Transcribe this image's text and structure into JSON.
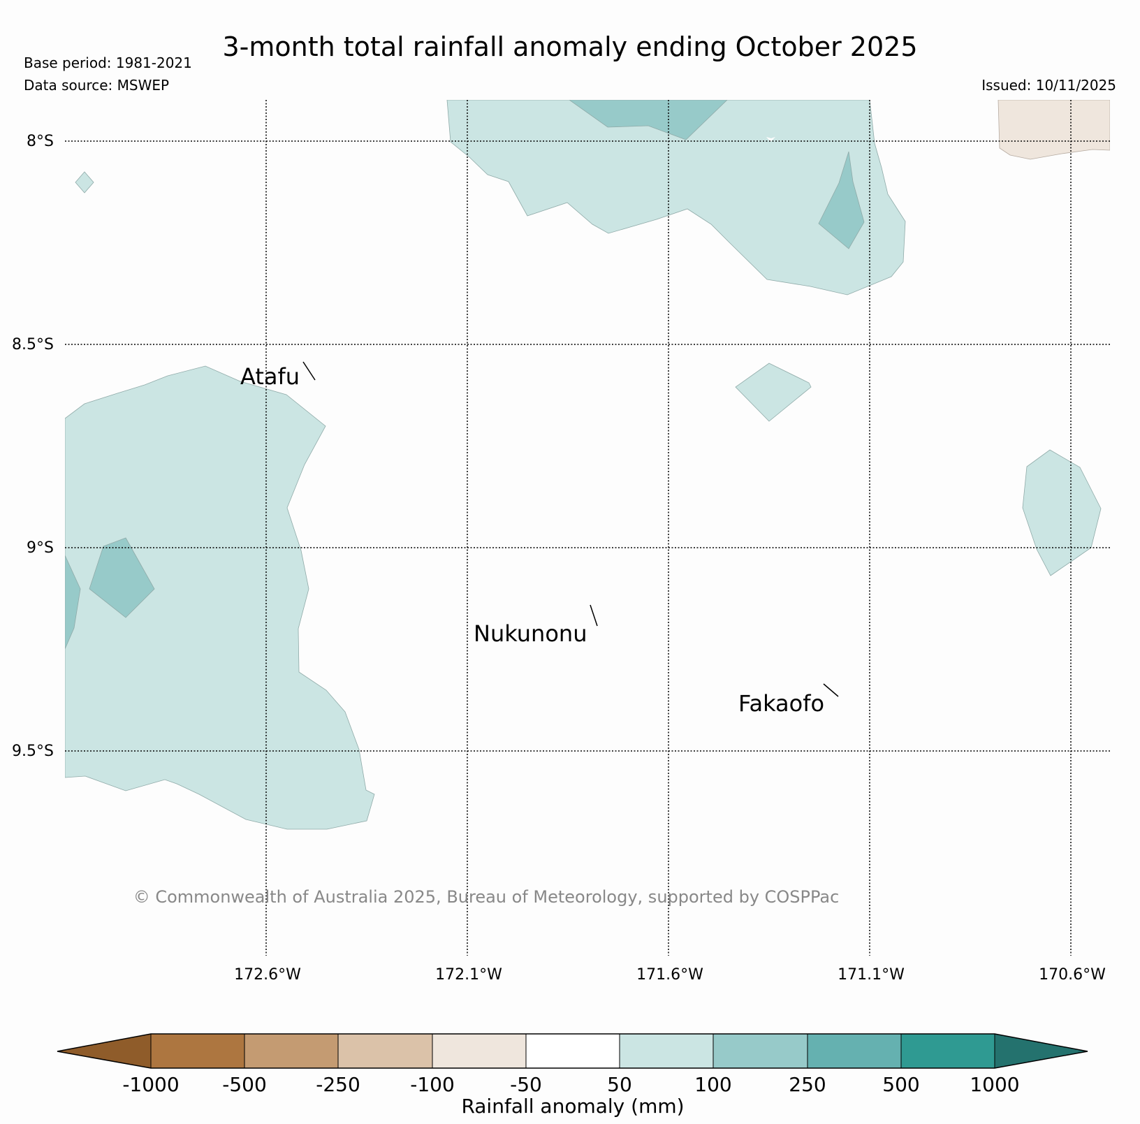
{
  "title": "3-month total rainfall anomaly ending October 2025",
  "base_period": "Base period: 1981-2021",
  "data_source": "Data source: MSWEP",
  "issued": "Issued: 10/11/2025",
  "copyright": "© Commonwealth of Australia 2025, Bureau of Meteorology, supported by COSPPac",
  "lat_ticks": [
    "8°S",
    "8.5°S",
    "9°S",
    "9.5°S"
  ],
  "lon_ticks": [
    "172.6°W",
    "172.1°W",
    "171.6°W",
    "171.1°W",
    "170.6°W"
  ],
  "places": [
    "Atafu",
    "Nukunonu",
    "Fakaofo"
  ],
  "colors": {
    "ocean": "#fdfdfd",
    "anom_neg100_neg50": "#efe6dd",
    "anom_50_100": "#cbe5e3",
    "anom_100_250": "#97cac9"
  },
  "colorbar": {
    "title": "Rainfall anomaly (mm)",
    "tick_labels": [
      "-1000",
      "-500",
      "-250",
      "-100",
      "-50",
      "50",
      "100",
      "250",
      "500",
      "1000"
    ],
    "colors": [
      "#8f5c2a",
      "#ad7640",
      "#c49b72",
      "#dbc2a9",
      "#efe6dd",
      "#ffffff",
      "#cbe5e3",
      "#97cac9",
      "#65b1b0",
      "#2f9a92",
      "#24726e"
    ]
  }
}
